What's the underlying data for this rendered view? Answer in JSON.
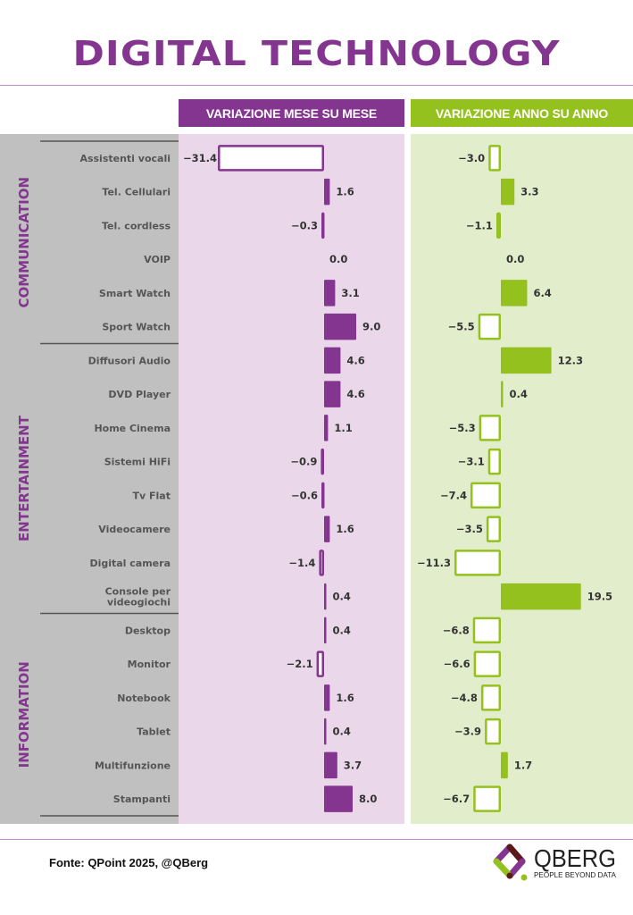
{
  "title": "DIGITAL TECHNOLOGY",
  "colors": {
    "purple": "#84358f",
    "purple_panel": "#ead8ea",
    "green": "#95c11f",
    "green_panel": "#e2edcb",
    "gray_panel": "#c0c0c0",
    "label_text": "#555555",
    "value_text": "#333333"
  },
  "source": "Fonte: QPoint 2025, @QBerg",
  "logo": {
    "name": "QBERG",
    "tagline": "PEOPLE BEYOND DATA"
  },
  "chart_data": {
    "type": "bar",
    "orientation": "horizontal",
    "title": "DIGITAL TECHNOLOGY",
    "negative_bars_style": "hollow outline",
    "positive_bars_style": "filled",
    "groups": [
      {
        "name": "COMMUNICATION",
        "start": 0,
        "count": 6
      },
      {
        "name": "ENTERTAINMENT",
        "start": 6,
        "count": 8
      },
      {
        "name": "INFORMATION",
        "start": 14,
        "count": 6
      }
    ],
    "categories": [
      "Assistenti vocali",
      "Tel. Cellulari",
      "Tel. cordless",
      "VOIP",
      "Smart Watch",
      "Sport Watch",
      "Diffusori Audio",
      "DVD Player",
      "Home Cinema",
      "Sistemi HiFi",
      "Tv Flat",
      "Videocamere",
      "Digital camera",
      "Console per videogiochi",
      "Desktop",
      "Monitor",
      "Notebook",
      "Tablet",
      "Multifunzione",
      "Stampanti"
    ],
    "series": [
      {
        "name": "VARIAZIONE MESE SU MESE",
        "color": "#84358f",
        "values": [
          -31.4,
          1.6,
          -0.3,
          0.0,
          3.1,
          9.0,
          4.6,
          4.6,
          1.1,
          -0.9,
          -0.6,
          1.6,
          -1.4,
          0.4,
          0.4,
          -2.1,
          1.6,
          0.4,
          3.7,
          8.0
        ]
      },
      {
        "name": "VARIAZIONE ANNO SU ANNO",
        "color": "#95c11f",
        "values": [
          -3.0,
          3.3,
          -1.1,
          0.0,
          6.4,
          -5.5,
          12.3,
          0.4,
          -5.3,
          -3.1,
          -7.4,
          -3.5,
          -11.3,
          19.5,
          -6.8,
          -6.6,
          -4.8,
          -3.9,
          1.7,
          -6.7
        ]
      }
    ],
    "xlabel": "",
    "ylabel": "",
    "grid": false,
    "legend": "top"
  }
}
